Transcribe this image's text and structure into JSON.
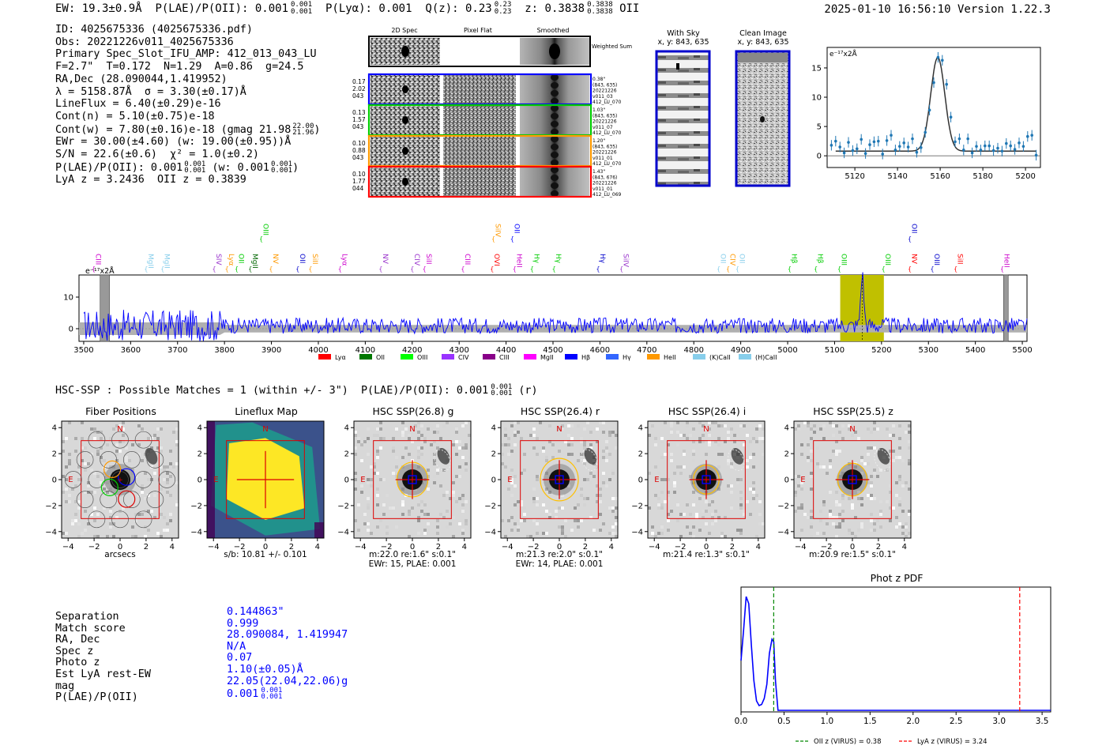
{
  "header": {
    "ew": "EW: 19.3±0.9Å",
    "plae": "P(LAE)/P(OII): 0.001",
    "plae_sup": "0.001",
    "plae_sub": "0.001",
    "plya": "P(Lyα): 0.001",
    "qz": "Q(z): 0.23",
    "qz_sup": "0.23",
    "qz_sub": "0.23",
    "z": "z: 0.3838",
    "z_sup": "0.3838",
    "z_sub": "0.3838",
    "z_line": "OII",
    "timestamp": "2025-01-10 16:56:10",
    "version": "Version 1.22.3"
  },
  "info": {
    "id": "ID: 4025675336 (4025675336.pdf)",
    "obs": "Obs: 20221226v011_4025675336",
    "primary": "Primary Spec_Slot_IFU_AMP: 412_013_043_LU",
    "fparams": "F=2.7\"  T=0.172  N=1.29  A=0.86  g=24.5",
    "radec": "RA,Dec (28.090044,1.419952)",
    "lambda": "λ = 5158.87Å  σ = 3.30(±0.17)Å",
    "lineflux": "LineFlux = 6.40(±0.29)e-16",
    "contn": "Cont(n) = 5.10(±0.75)e-18",
    "contw": "Cont(w) = 7.80(±0.16)e-18 (gmag 21.98",
    "contw_sup": "22.00",
    "contw_sub": "21.96",
    "ewr": "EWr = 30.00(±4.60) (w: 19.00(±0.95))Å",
    "sn": "S/N = 22.6(±0.6)  χ² = 1.0(±0.2)",
    "plae": "P(LAE)/P(OII): 0.001",
    "plae_w": "(w: 0.001",
    "plae_sup": "0.001",
    "plae_sub": "0.001",
    "lyaz": "LyA z = 3.2436  OII z = 0.3839"
  },
  "cutouts": {
    "col_titles": [
      "2D Spec",
      "Pixel Flat",
      "Smoothed"
    ],
    "weighted_sum": "Weighted Sum",
    "rows": [
      {
        "left": [
          "0.17",
          "2.02",
          "043"
        ],
        "right": [
          "0.38\"",
          "(843, 635)",
          "20221226",
          "v011_03",
          "412_LU_070"
        ],
        "color": "#0000ff"
      },
      {
        "left": [
          "0.13",
          "1.57",
          "043"
        ],
        "right": [
          "1.03\"",
          "(843, 635)",
          "20221226",
          "v011_07",
          "412_LU_070"
        ],
        "color": "#00cc00"
      },
      {
        "left": [
          "0.10",
          "0.88",
          "043"
        ],
        "right": [
          "1.20\"",
          "(843, 635)",
          "20221226",
          "v011_01",
          "412_LU_070"
        ],
        "color": "#ff9900"
      },
      {
        "left": [
          "0.10",
          "1.77",
          "044"
        ],
        "right": [
          "1.43\"",
          "(843, 676)",
          "20221226",
          "v011_01",
          "412_LU_069"
        ],
        "color": "#ff0000"
      }
    ],
    "with_sky_title": "With Sky",
    "with_sky_sub": "x, y: 843, 635",
    "clean_title": "Clean Image",
    "clean_sub": "x, y: 843, 635"
  },
  "zoom_chart": {
    "ylabel": "e⁻¹⁷x2Å"
  },
  "full_spectrum": {
    "ylabel": "e⁻¹⁷x2Å",
    "line_labels": [
      {
        "name": "CIII",
        "color": "#cc00cc",
        "x": 3521,
        "row": 2
      },
      {
        "name": "MgII",
        "color": "#87ceeb",
        "x": 3633,
        "row": 2
      },
      {
        "name": "MgII",
        "color": "#87ceeb",
        "x": 3668,
        "row": 2
      },
      {
        "name": "SIV",
        "color": "#9933cc",
        "x": 3778,
        "row": 2
      },
      {
        "name": "Lyα",
        "color": "#ff9900",
        "x": 3805,
        "row": 2
      },
      {
        "name": "OII",
        "color": "#00cc00",
        "x": 3826,
        "row": 2
      },
      {
        "name": "MgII",
        "color": "#006600",
        "x": 3855,
        "row": 2
      },
      {
        "name": "OIII",
        "color": "#00cc00",
        "x": 3878,
        "row": 0
      },
      {
        "name": "NV",
        "color": "#ff9900",
        "x": 3899,
        "row": 2
      },
      {
        "name": "OII",
        "color": "#0000cc",
        "x": 3956,
        "row": 2
      },
      {
        "name": "SiII",
        "color": "#ff9900",
        "x": 3983,
        "row": 2
      },
      {
        "name": "Lyα",
        "color": "#cc00cc",
        "x": 4046,
        "row": 2
      },
      {
        "name": "NV",
        "color": "#9933cc",
        "x": 4133,
        "row": 2
      },
      {
        "name": "CIV",
        "color": "#9933cc",
        "x": 4200,
        "row": 2
      },
      {
        "name": "SiII",
        "color": "#cc00cc",
        "x": 4226,
        "row": 2
      },
      {
        "name": "CIII",
        "color": "#cc00cc",
        "x": 4308,
        "row": 2
      },
      {
        "name": "SiIV",
        "color": "#ff9900",
        "x": 4373,
        "row": 0
      },
      {
        "name": "OVI",
        "color": "#ff0000",
        "x": 4370,
        "row": 2
      },
      {
        "name": "OII",
        "color": "#0000ff",
        "x": 4413,
        "row": 0
      },
      {
        "name": "HeII",
        "color": "#cc00cc",
        "x": 4418,
        "row": 2
      },
      {
        "name": "Hγ",
        "color": "#00cc00",
        "x": 4455,
        "row": 2
      },
      {
        "name": "Hγ",
        "color": "#00cc00",
        "x": 4502,
        "row": 2
      },
      {
        "name": "Hγ",
        "color": "#0000cc",
        "x": 4596,
        "row": 2
      },
      {
        "name": "SiIV",
        "color": "#9933cc",
        "x": 4646,
        "row": 2
      },
      {
        "name": "OII",
        "color": "#87ceeb",
        "x": 4853,
        "row": 2
      },
      {
        "name": "CIV",
        "color": "#ff9900",
        "x": 4873,
        "row": 2
      },
      {
        "name": "OII",
        "color": "#87ceeb",
        "x": 4893,
        "row": 2
      },
      {
        "name": "Hβ",
        "color": "#00cc00",
        "x": 5004,
        "row": 2
      },
      {
        "name": "Hβ",
        "color": "#00cc00",
        "x": 5060,
        "row": 2
      },
      {
        "name": "OIII",
        "color": "#00cc00",
        "x": 5110,
        "row": 2
      },
      {
        "name": "OIII",
        "color": "#00cc00",
        "x": 5204,
        "row": 2
      },
      {
        "name": "NV",
        "color": "#ff0000",
        "x": 5260,
        "row": 2
      },
      {
        "name": "OII",
        "color": "#0000cc",
        "x": 5260,
        "row": 0
      },
      {
        "name": "OIII",
        "color": "#0000cc",
        "x": 5308,
        "row": 2
      },
      {
        "name": "SiII",
        "color": "#ff0000",
        "x": 5358,
        "row": 2
      },
      {
        "name": "HeII",
        "color": "#cc00cc",
        "x": 5457,
        "row": 2
      }
    ],
    "legend": [
      {
        "label": "Lyα",
        "color": "#ff0000"
      },
      {
        "label": "OII",
        "color": "#007700"
      },
      {
        "label": "OIII",
        "color": "#00ff00"
      },
      {
        "label": "CIV",
        "color": "#9933ff"
      },
      {
        "label": "CIII",
        "color": "#880088"
      },
      {
        "label": "MgII",
        "color": "#ff00ff"
      },
      {
        "label": "Hβ",
        "color": "#0000ff"
      },
      {
        "label": "Hγ",
        "color": "#3366ff"
      },
      {
        "label": "HeII",
        "color": "#ff9900"
      },
      {
        "label": "(K)CaII",
        "color": "#87ceeb"
      },
      {
        "label": "(H)CaII",
        "color": "#87ceeb"
      }
    ]
  },
  "hsc": {
    "line": "HSC-SSP : Possible Matches = 1 (within +/- 3\")  P(LAE)/P(OII): 0.001",
    "line_sup": "0.001",
    "line_sub": "0.001",
    "line_end": "(r)",
    "panels": [
      {
        "title": "Fiber Positions",
        "cap1": "arcsecs",
        "cap2": ""
      },
      {
        "title": "Lineflux Map",
        "cap1": "s/b: 10.81 +/- 0.101",
        "cap2": ""
      },
      {
        "title": "HSC SSP(26.8) g",
        "cap1": "m:22.0  re:1.6\"  s:0.1\"",
        "cap2": "EWr: 15, PLAE: 0.001"
      },
      {
        "title": "HSC SSP(26.4) r",
        "cap1": "m:21.3  re:2.0\"  s:0.1\"",
        "cap2": "EWr: 14, PLAE: 0.001"
      },
      {
        "title": "HSC SSP(26.4) i",
        "cap1": "m:21.4  re:1.3\"  s:0.1\"",
        "cap2": ""
      },
      {
        "title": "HSC SSP(25.5) z",
        "cap1": "m:20.9  re:1.5\"  s:0.1\"",
        "cap2": ""
      }
    ],
    "north": "N",
    "east": "E"
  },
  "match": {
    "labels": [
      "Separation",
      "Match score",
      "RA, Dec",
      "Spec z",
      "Photo z",
      "Est LyA rest-EW",
      "mag",
      "P(LAE)/P(OII)"
    ],
    "values": [
      "0.144863\"",
      "0.999",
      "28.090084, 1.419947",
      "N/A",
      "0.07",
      "1.10(±0.05)Å",
      "22.05(22.04,22.06)g",
      "0.001"
    ],
    "plae_sup": "0.001",
    "plae_sub": "0.001"
  },
  "chart_data": [
    {
      "type": "line",
      "title": "",
      "ylabel": "e⁻¹⁷x2Å",
      "xlim": [
        5107,
        5207
      ],
      "ylim": [
        -2,
        18.5
      ],
      "xticks": [
        5120,
        5140,
        5160,
        5180,
        5200
      ],
      "yticks": [
        0,
        5,
        10,
        15
      ],
      "series": [
        {
          "name": "data",
          "color": "#1f77b4",
          "x": [
            5109,
            5111,
            5113,
            5115,
            5117,
            5119,
            5121,
            5123,
            5125,
            5127,
            5129,
            5131,
            5133,
            5135,
            5137,
            5139,
            5141,
            5143,
            5145,
            5147,
            5149,
            5151,
            5153,
            5155,
            5157,
            5159,
            5161,
            5163,
            5165,
            5167,
            5169,
            5171,
            5173,
            5175,
            5177,
            5179,
            5181,
            5183,
            5185,
            5187,
            5189,
            5191,
            5193,
            5195,
            5197,
            5199,
            5201,
            5203,
            5205
          ],
          "y": [
            1.8,
            2.5,
            1.5,
            0.5,
            2.3,
            0.9,
            1.2,
            2.8,
            0.4,
            1.9,
            2.4,
            2.5,
            0.3,
            2.6,
            3.5,
            1.0,
            1.6,
            2.2,
            1.5,
            2.9,
            0.6,
            1.4,
            4.0,
            7.8,
            12.5,
            16.8,
            16.3,
            12.2,
            6.6,
            2.4,
            2.9,
            1.0,
            2.9,
            0.5,
            1.6,
            1.0,
            1.7,
            1.7,
            0.9,
            1.3,
            0.8,
            2.1,
            1.7,
            1.1,
            2.2,
            1.6,
            3.3,
            3.5,
            0.1
          ]
        },
        {
          "name": "gaussian fit",
          "color": "#333333",
          "center": 5158.87,
          "sigma": 3.3,
          "amplitude": 16.0,
          "continuum": 0.8
        }
      ]
    },
    {
      "type": "line",
      "title": "",
      "ylabel": "e⁻¹⁷x2Å",
      "xlim": [
        3490,
        5510
      ],
      "ylim": [
        -4,
        17
      ],
      "xticks": [
        3500,
        3600,
        3700,
        3800,
        3900,
        4000,
        4100,
        4200,
        4300,
        4400,
        4500,
        4600,
        4700,
        4800,
        4900,
        5000,
        5100,
        5200,
        5300,
        5400,
        5500
      ],
      "yticks": [
        0,
        10
      ],
      "series": [
        {
          "name": "spectrum",
          "color": "#0000ff",
          "note": "noise around ~1 with emission peak ~16.3 at 5158.9"
        }
      ],
      "highlight": [
        5112,
        5205
      ],
      "masked": [
        [
          3535,
          3555
        ],
        [
          5460,
          5470
        ]
      ]
    },
    {
      "type": "line",
      "title": "Phot z PDF",
      "xlim": [
        0,
        3.6
      ],
      "ylim": [
        0,
        1
      ],
      "xticks": [
        0.0,
        0.5,
        1.0,
        1.5,
        2.0,
        2.5,
        3.0,
        3.5
      ],
      "series": [
        {
          "name": "PDF",
          "color": "#0000ff",
          "x": [
            0.0,
            0.03,
            0.06,
            0.09,
            0.12,
            0.15,
            0.18,
            0.21,
            0.24,
            0.27,
            0.3,
            0.33,
            0.36,
            0.38,
            0.4,
            0.43,
            0.5,
            1.0,
            2.0,
            3.0,
            3.6
          ],
          "y": [
            0.42,
            0.68,
            0.96,
            0.9,
            0.55,
            0.25,
            0.08,
            0.04,
            0.05,
            0.1,
            0.22,
            0.48,
            0.6,
            0.58,
            0.25,
            0.0,
            0.0,
            0.0,
            0.0,
            0.0,
            0.0
          ]
        }
      ],
      "vlines": [
        {
          "x": 0.38,
          "color": "#008800",
          "label": "OII z (VIRUS) = 0.38"
        },
        {
          "x": 3.24,
          "color": "#ff0000",
          "label": "LyA z (VIRUS) = 3.24"
        }
      ]
    }
  ]
}
